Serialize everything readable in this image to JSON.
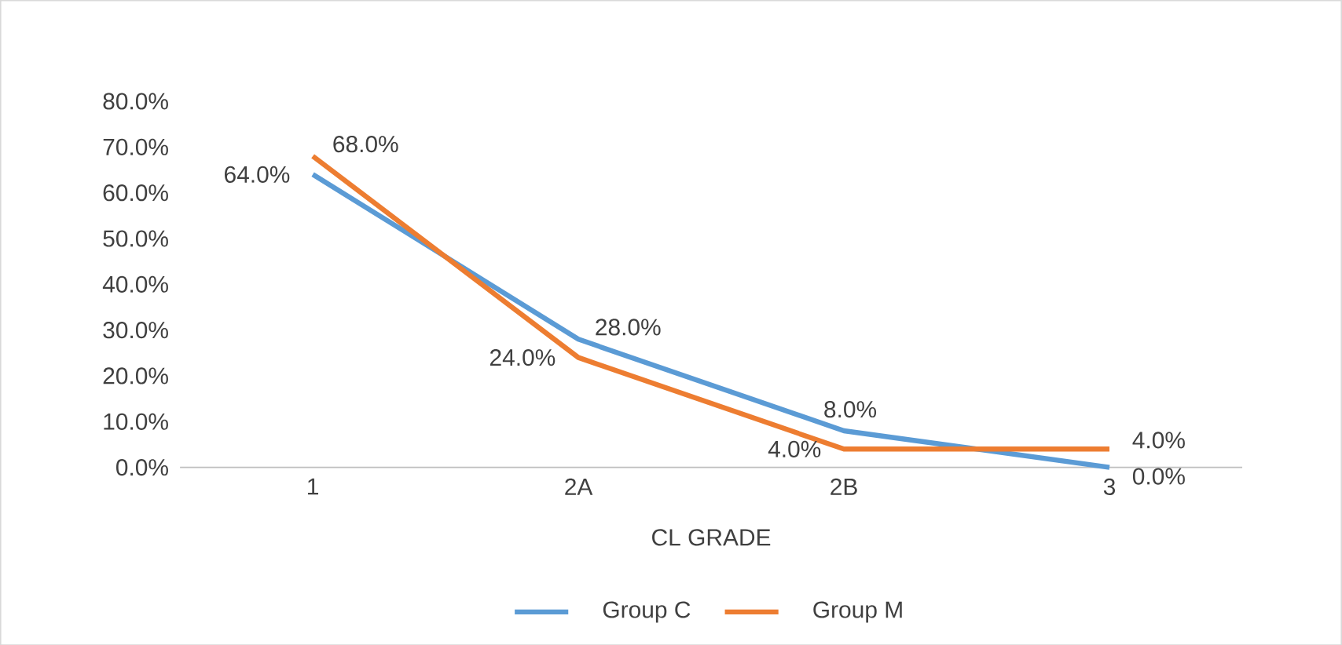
{
  "chart_data": {
    "type": "line",
    "xlabel": "CL GRADE",
    "categories": [
      "1",
      "2A",
      "2B",
      "3"
    ],
    "series": [
      {
        "name": "Group C",
        "color": "#5b9bd5",
        "values": [
          64,
          28,
          8,
          0
        ],
        "value_labels": [
          "64.0%",
          "28.0%",
          "8.0%",
          "0.0%"
        ]
      },
      {
        "name": "Group M",
        "color": "#ed7d31",
        "values": [
          68,
          24,
          4,
          4
        ],
        "value_labels": [
          "68.0%",
          "24.0%",
          "4.0%",
          "4.0%"
        ]
      }
    ],
    "ylim": [
      0,
      80
    ],
    "yticks": [
      {
        "value": 0,
        "label": "0.0%"
      },
      {
        "value": 10,
        "label": "10.0%"
      },
      {
        "value": 20,
        "label": "20.0%"
      },
      {
        "value": 30,
        "label": "30.0%"
      },
      {
        "value": 40,
        "label": "40.0%"
      },
      {
        "value": 50,
        "label": "50.0%"
      },
      {
        "value": 60,
        "label": "60.0%"
      },
      {
        "value": 70,
        "label": "70.0%"
      },
      {
        "value": 80,
        "label": "80.0%"
      }
    ],
    "legend": "bottom",
    "marker": "none",
    "line_style": "solid"
  }
}
